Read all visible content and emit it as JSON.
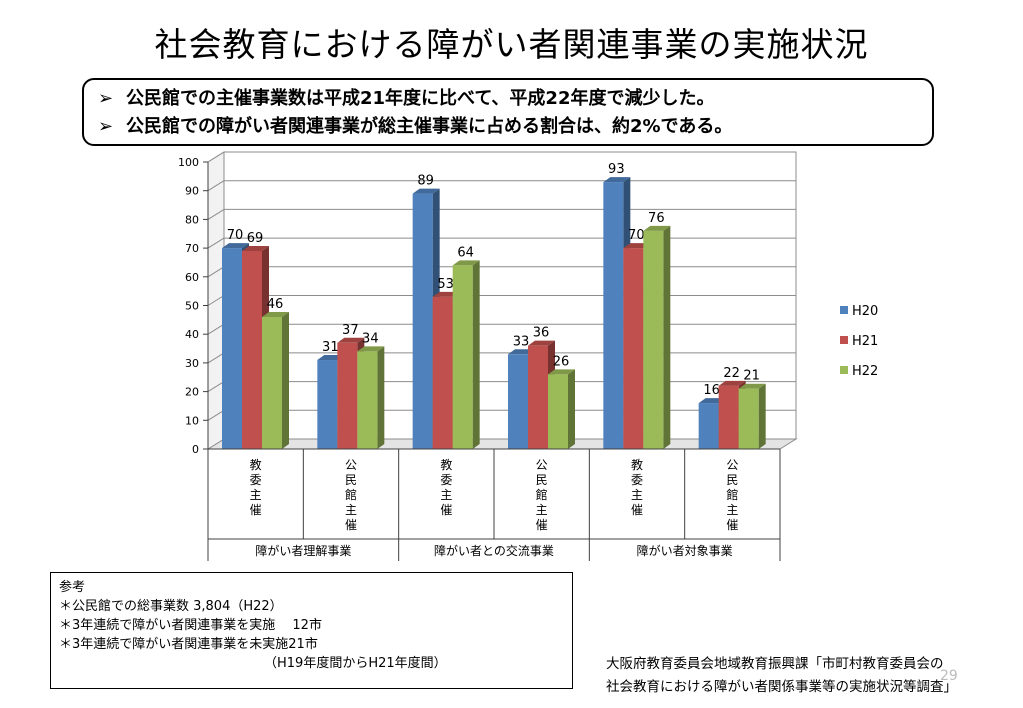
{
  "title": "社会教育における障がい者関連事業の実施状況",
  "summary": {
    "bullet_glyph": "➢",
    "lines": [
      "公民館での主催事業数は平成21年度に比べて、平成22年度で減少した。",
      "公民館での障がい者関連事業が総主催事業に占める割合は、約2%である。"
    ]
  },
  "colors": {
    "H20": "#4F81BD",
    "H21": "#C0504D",
    "H22": "#9BBB59"
  },
  "chart_data": {
    "type": "bar",
    "categories": [
      "教委主催",
      "公民館主催",
      "教委主催",
      "公民館主催",
      "教委主催",
      "公民館主催"
    ],
    "category_groups": [
      "障がい者理解事業",
      "障がい者との交流事業",
      "障がい者対象事業"
    ],
    "series": [
      {
        "name": "H20",
        "values": [
          70,
          31,
          89,
          33,
          93,
          16
        ]
      },
      {
        "name": "H21",
        "values": [
          69,
          37,
          53,
          36,
          70,
          22
        ]
      },
      {
        "name": "H22",
        "values": [
          46,
          34,
          64,
          26,
          76,
          21
        ]
      }
    ],
    "yticks": [
      0,
      10,
      20,
      30,
      40,
      50,
      60,
      70,
      80,
      90,
      100
    ],
    "ylim": [
      0,
      100
    ],
    "grid": true,
    "legend_position": "right",
    "data_labels": true
  },
  "reference": {
    "heading": "参考",
    "lines": [
      "＊公民館での総事業数  3,804（H22）",
      "＊3年連続で障がい者関連事業を実施　 12市",
      "＊3年連続で障がい者関連事業を未実施21市"
    ],
    "note": "（H19年度間からH21年度間）"
  },
  "source": {
    "line1": "大阪府教育委員会地域教育振興課「市町村教育委員会の",
    "line2": "社会教育における障がい者関係事業等の実施状況等調査」"
  },
  "page_number": "29"
}
